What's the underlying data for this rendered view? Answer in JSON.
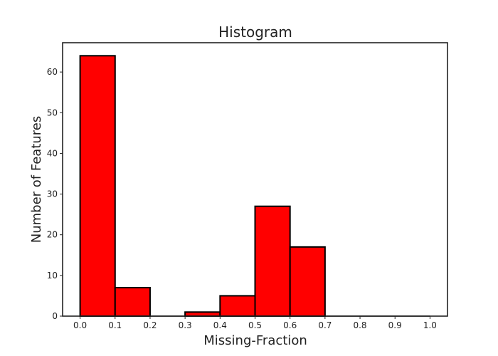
{
  "chart_data": {
    "type": "bar",
    "title": "Histogram",
    "xlabel": "Missing-Fraction",
    "ylabel": "Number of Features",
    "bins": [
      {
        "start": 0.0,
        "end": 0.1,
        "count": 64
      },
      {
        "start": 0.1,
        "end": 0.2,
        "count": 7
      },
      {
        "start": 0.2,
        "end": 0.3,
        "count": 0
      },
      {
        "start": 0.3,
        "end": 0.4,
        "count": 1
      },
      {
        "start": 0.4,
        "end": 0.5,
        "count": 5
      },
      {
        "start": 0.5,
        "end": 0.6,
        "count": 27
      },
      {
        "start": 0.6,
        "end": 0.7,
        "count": 17
      },
      {
        "start": 0.7,
        "end": 0.8,
        "count": 0
      },
      {
        "start": 0.8,
        "end": 0.9,
        "count": 0
      },
      {
        "start": 0.9,
        "end": 1.0,
        "count": 0
      }
    ],
    "xlim": [
      -0.05,
      1.05
    ],
    "ylim": [
      0,
      67.2
    ],
    "xticks": [
      0.0,
      0.1,
      0.2,
      0.3,
      0.4,
      0.5,
      0.6,
      0.7,
      0.8,
      0.9,
      1.0
    ],
    "xtick_labels": [
      "0.0",
      "0.1",
      "0.2",
      "0.3",
      "0.4",
      "0.5",
      "0.6",
      "0.7",
      "0.8",
      "0.9",
      "1.0"
    ],
    "yticks": [
      0,
      10,
      20,
      30,
      40,
      50,
      60
    ],
    "ytick_labels": [
      "0",
      "10",
      "20",
      "30",
      "40",
      "50",
      "60"
    ],
    "grid": false,
    "bar_color": "#ff0000",
    "edge_color": "#000000"
  }
}
